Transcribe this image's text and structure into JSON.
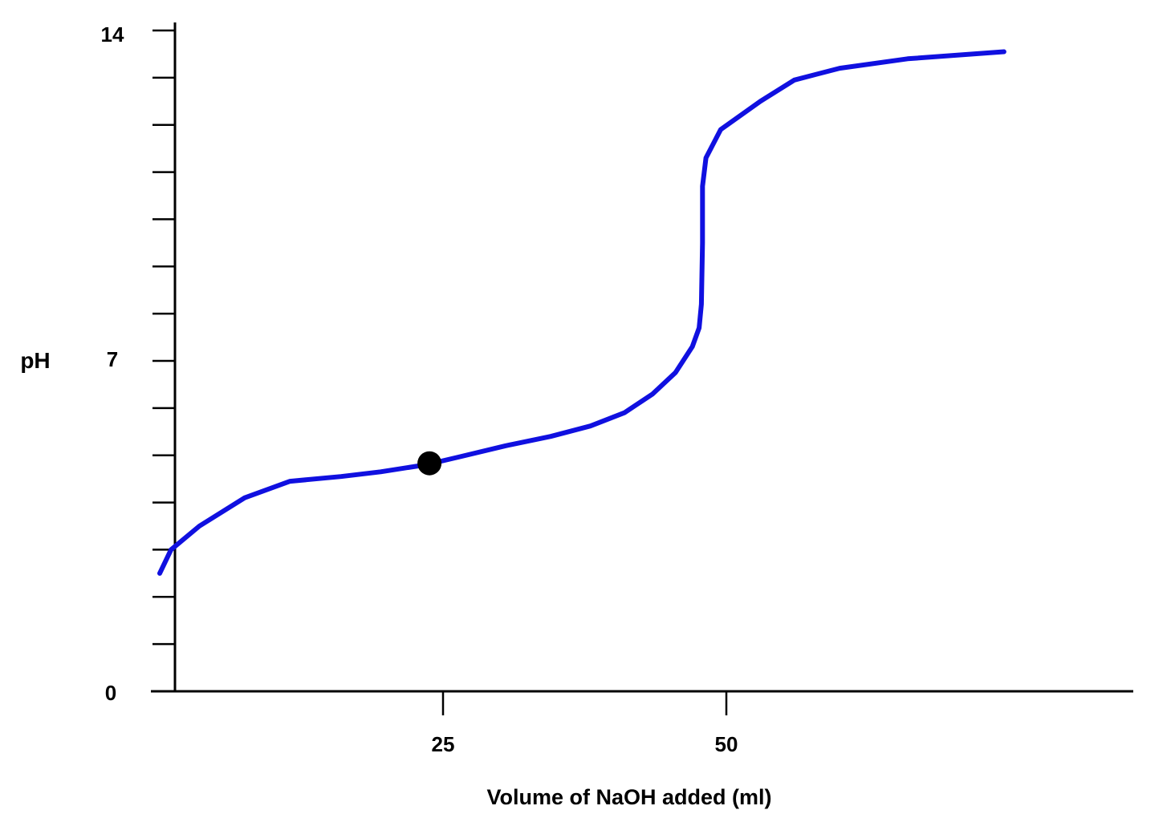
{
  "chart_data": {
    "type": "line",
    "title": "",
    "xlabel": "Volume of NaOH added (ml)",
    "ylabel": "pH",
    "xlim": [
      -2,
      72
    ],
    "ylim": [
      0,
      14
    ],
    "x_ticks": [
      "25",
      "50"
    ],
    "y_ticks": [
      "0",
      "7",
      "14"
    ],
    "grid": false,
    "colors": {
      "curve": "#1010e0",
      "point": "#000000",
      "axis": "#000000"
    },
    "series": [
      {
        "values": [
          [
            0,
            2.5
          ],
          [
            1,
            3.0
          ],
          [
            3.5,
            3.5
          ],
          [
            7.5,
            4.1
          ],
          [
            11.5,
            4.45
          ],
          [
            16,
            4.55
          ],
          [
            19.5,
            4.65
          ],
          [
            23.5,
            4.8
          ],
          [
            26.5,
            4.97
          ],
          [
            30.5,
            5.2
          ],
          [
            34.5,
            5.4
          ],
          [
            38,
            5.62
          ],
          [
            41,
            5.9
          ],
          [
            43.5,
            6.3
          ],
          [
            45.5,
            6.75
          ],
          [
            47,
            7.3
          ],
          [
            47.6,
            7.7
          ],
          [
            47.8,
            8.2
          ],
          [
            47.9,
            9.5
          ],
          [
            47.9,
            10.7
          ],
          [
            48.2,
            11.3
          ],
          [
            49.5,
            11.9
          ],
          [
            53,
            12.5
          ],
          [
            56,
            12.95
          ],
          [
            60,
            13.2
          ],
          [
            66,
            13.4
          ],
          [
            74.5,
            13.55
          ]
        ]
      }
    ],
    "highlight_point": {
      "x": 23.8,
      "y": 4.83
    }
  }
}
